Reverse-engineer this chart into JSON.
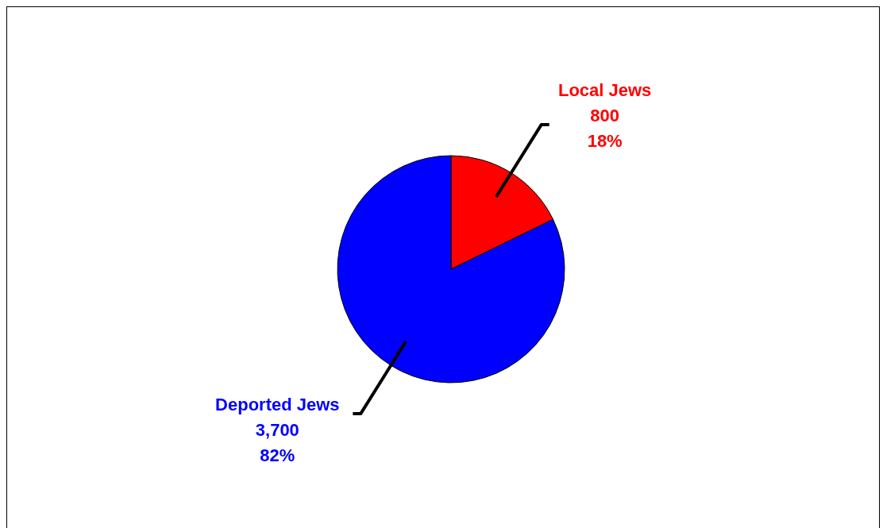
{
  "chart_data": {
    "type": "pie",
    "categories": [
      "Local Jews",
      "Deported Jews"
    ],
    "values": [
      800,
      3700
    ],
    "colors": [
      "#ff0000",
      "#0000ff"
    ],
    "value_labels": [
      "800\n18%",
      "3,700\n82%"
    ]
  }
}
